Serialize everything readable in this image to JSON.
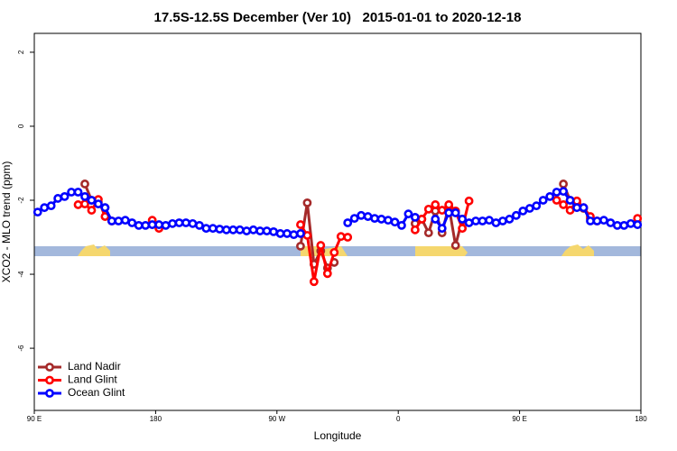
{
  "chart_data": {
    "type": "line",
    "title": "17.5S-12.5S December (Ver 10)   2015-01-01 to 2020-12-18",
    "xlabel": "Longitude",
    "ylabel": "XCO2 - MLO trend (ppm)",
    "xlim": [
      90,
      540
    ],
    "xticks": [
      {
        "value": 90,
        "label": "90 E"
      },
      {
        "value": 180,
        "label": "180"
      },
      {
        "value": 270,
        "label": "90 W"
      },
      {
        "value": 360,
        "label": "0"
      },
      {
        "value": 450,
        "label": "90 E"
      },
      {
        "value": 540,
        "label": "180"
      }
    ],
    "ylim": [
      -7.68,
      2.51
    ],
    "yticks": [
      2,
      0,
      -2,
      -4,
      -6
    ],
    "legend": "bottom-left",
    "x": [
      92.5,
      97.5,
      102.5,
      107.5,
      112.5,
      117.5,
      122.5,
      127.5,
      132.5,
      137.5,
      142.5,
      147.5,
      152.5,
      157.5,
      162.5,
      167.5,
      172.5,
      177.5,
      182.5,
      187.5,
      192.5,
      197.5,
      202.5,
      207.5,
      212.5,
      217.5,
      222.5,
      227.5,
      232.5,
      237.5,
      242.5,
      247.5,
      252.5,
      257.5,
      262.5,
      267.5,
      272.5,
      277.5,
      282.5,
      287.5,
      292.5,
      297.5,
      302.5,
      307.5,
      312.5,
      317.5,
      322.5,
      327.5,
      332.5,
      337.5,
      342.5,
      347.5,
      352.5,
      357.5,
      362.5,
      367.5,
      372.5,
      377.5,
      382.5,
      387.5,
      392.5,
      397.5,
      402.5,
      407.5,
      412.5,
      417.5,
      422.5,
      427.5,
      432.5,
      437.5,
      442.5,
      447.5,
      452.5,
      457.5,
      462.5,
      467.5,
      472.5,
      477.5,
      482.5,
      487.5,
      492.5,
      497.5,
      502.5,
      507.5,
      512.5,
      517.5,
      522.5,
      527.5,
      532.5,
      537.5
    ],
    "series": [
      {
        "name": "Land Nadir",
        "color": "#a52a2a",
        "values": [
          null,
          null,
          null,
          null,
          null,
          null,
          null,
          -1.56,
          -2.0,
          -2.05,
          -2.2,
          null,
          null,
          null,
          null,
          null,
          null,
          null,
          null,
          null,
          null,
          null,
          null,
          null,
          null,
          null,
          null,
          null,
          null,
          null,
          null,
          null,
          null,
          null,
          null,
          null,
          null,
          null,
          null,
          -3.24,
          -2.07,
          -3.73,
          -3.37,
          -3.83,
          -3.68,
          null,
          null,
          null,
          null,
          null,
          null,
          null,
          null,
          null,
          null,
          null,
          -2.63,
          -2.51,
          -2.88,
          -2.29,
          -2.88,
          -2.15,
          -3.22,
          -2.51,
          null,
          null,
          null,
          null,
          null,
          null,
          null,
          null,
          null,
          null,
          null,
          null,
          null,
          null,
          -1.56,
          -2.0,
          -2.05,
          -2.22,
          -2.5,
          null,
          null,
          null,
          null,
          null,
          null,
          null
        ]
      },
      {
        "name": "Land Glint",
        "color": "#ff0000",
        "values": [
          null,
          null,
          null,
          null,
          null,
          null,
          -2.12,
          -2.1,
          -2.27,
          -1.98,
          -2.44,
          -2.56,
          null,
          null,
          null,
          null,
          null,
          -2.54,
          -2.76,
          null,
          null,
          null,
          null,
          null,
          null,
          null,
          null,
          null,
          null,
          null,
          null,
          null,
          null,
          null,
          null,
          null,
          null,
          null,
          null,
          -2.66,
          -2.95,
          -4.2,
          -3.22,
          -3.98,
          -3.41,
          -2.98,
          -3.0,
          null,
          null,
          null,
          null,
          null,
          null,
          null,
          null,
          null,
          -2.8,
          -2.51,
          -2.24,
          -2.12,
          -2.27,
          -2.12,
          -2.29,
          -2.76,
          -2.02,
          null,
          null,
          null,
          null,
          null,
          null,
          null,
          null,
          null,
          null,
          null,
          null,
          -2.0,
          -2.12,
          -2.27,
          -2.02,
          -2.2,
          -2.44,
          -2.56,
          null,
          null,
          null,
          null,
          null,
          -2.49
        ]
      },
      {
        "name": "Ocean Glint",
        "color": "#0000ff",
        "values": [
          -2.32,
          -2.2,
          -2.15,
          -1.95,
          -1.9,
          -1.78,
          -1.78,
          -1.9,
          -2.0,
          -2.1,
          -2.2,
          -2.56,
          -2.56,
          -2.54,
          -2.61,
          -2.68,
          -2.68,
          -2.66,
          -2.66,
          -2.68,
          -2.63,
          -2.61,
          -2.61,
          -2.63,
          -2.68,
          -2.76,
          -2.76,
          -2.78,
          -2.8,
          -2.8,
          -2.8,
          -2.83,
          -2.8,
          -2.83,
          -2.83,
          -2.85,
          -2.9,
          -2.9,
          -2.93,
          -2.9,
          null,
          null,
          null,
          null,
          null,
          null,
          -2.61,
          -2.49,
          -2.41,
          -2.44,
          -2.49,
          -2.51,
          -2.54,
          -2.59,
          -2.68,
          -2.37,
          -2.46,
          null,
          null,
          -2.51,
          -2.76,
          -2.34,
          -2.34,
          -2.51,
          -2.61,
          -2.56,
          -2.56,
          -2.54,
          -2.61,
          -2.56,
          -2.51,
          -2.41,
          -2.29,
          -2.22,
          -2.15,
          -2.0,
          -1.9,
          -1.78,
          -1.76,
          -2.0,
          -2.2,
          -2.2,
          -2.56,
          -2.56,
          -2.54,
          -2.61,
          -2.68,
          -2.68,
          -2.63,
          -2.66
        ]
      }
    ]
  }
}
